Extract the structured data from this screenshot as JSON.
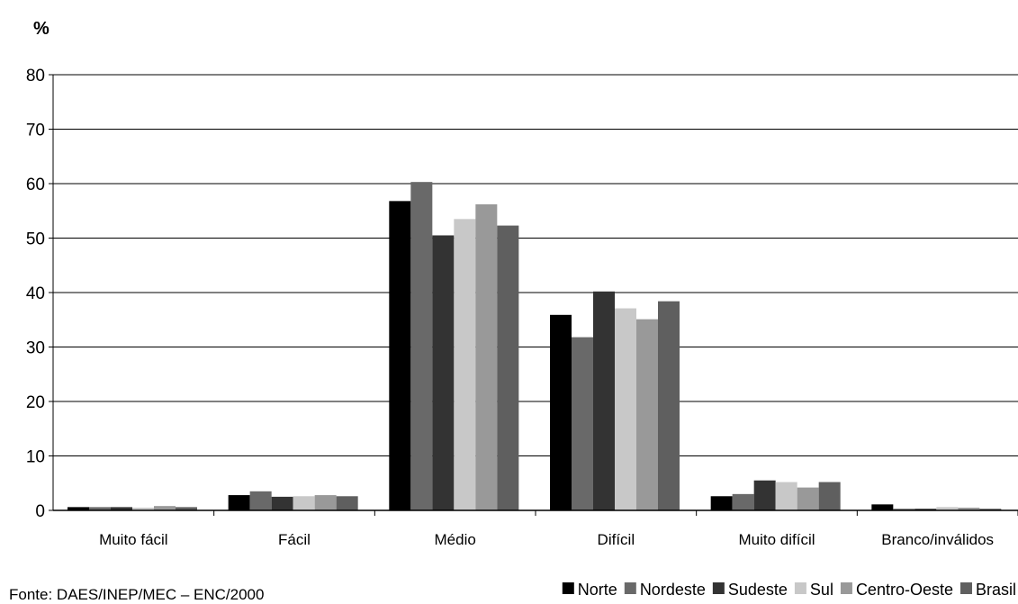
{
  "chart_data": {
    "type": "bar",
    "ylabel": "%",
    "ylim": [
      0,
      80
    ],
    "yticks": [
      0,
      10,
      20,
      30,
      40,
      50,
      60,
      70,
      80
    ],
    "grid": true,
    "legend_position": "bottom-right",
    "categories": [
      "Muito fácil",
      "Fácil",
      "Médio",
      "Difícil",
      "Muito difícil",
      "Branco/inválidos"
    ],
    "series": [
      {
        "name": "Norte",
        "color": "#000000",
        "values": [
          0.6,
          2.8,
          56.8,
          35.9,
          2.6,
          1.1
        ]
      },
      {
        "name": "Nordeste",
        "color": "#696969",
        "values": [
          0.6,
          3.5,
          60.3,
          31.8,
          3.0,
          0.3
        ]
      },
      {
        "name": "Sudeste",
        "color": "#333333",
        "values": [
          0.6,
          2.5,
          50.5,
          40.2,
          5.5,
          0.3
        ]
      },
      {
        "name": "Sul",
        "color": "#c8c8c8",
        "values": [
          0.5,
          2.6,
          53.5,
          37.1,
          5.2,
          0.6
        ]
      },
      {
        "name": "Centro-Oeste",
        "color": "#999999",
        "values": [
          0.8,
          2.8,
          56.2,
          35.1,
          4.2,
          0.5
        ]
      },
      {
        "name": "Brasil",
        "color": "#5f5f5f",
        "values": [
          0.6,
          2.6,
          52.3,
          38.4,
          5.2,
          0.3
        ]
      }
    ]
  },
  "source": "Fonte: DAES/INEP/MEC – ENC/2000"
}
